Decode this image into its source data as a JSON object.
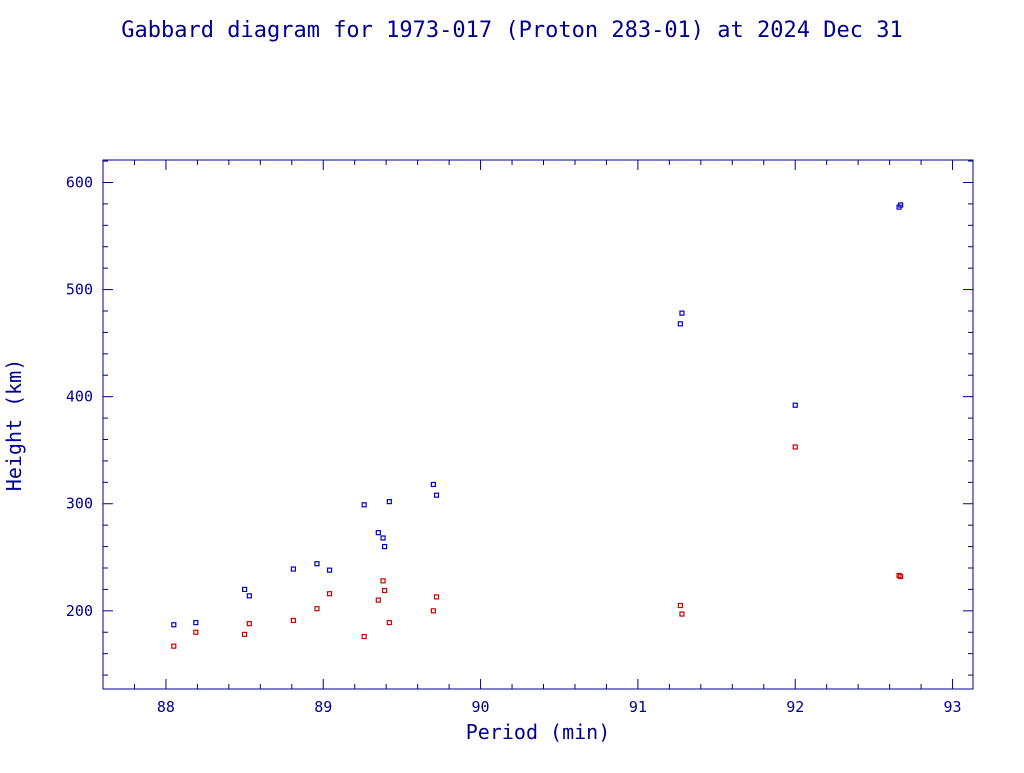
{
  "chart_data": {
    "type": "scatter",
    "title": "Gabbard diagram for 1973-017 (Proton 283-01) at 2024 Dec 31",
    "xlabel": "Period (min)",
    "ylabel": "Height (km)",
    "xlim": [
      87.6,
      93.13
    ],
    "ylim": [
      127,
      621
    ],
    "x_ticks": [
      "88",
      "89",
      "90",
      "91",
      "92",
      "93"
    ],
    "y_ticks": [
      "200",
      "300",
      "400",
      "500",
      "600"
    ],
    "colors": {
      "axis": "#00008b",
      "text": "#00008b",
      "apogee": "#0000cc",
      "perigee": "#cc0000"
    },
    "series": [
      {
        "role": "apogee",
        "color": "#0000cc",
        "points": [
          [
            88.05,
            187
          ],
          [
            88.19,
            189
          ],
          [
            88.5,
            220
          ],
          [
            88.53,
            214
          ],
          [
            88.81,
            239
          ],
          [
            88.96,
            244
          ],
          [
            89.04,
            238
          ],
          [
            89.26,
            299
          ],
          [
            89.35,
            273
          ],
          [
            89.38,
            268
          ],
          [
            89.39,
            260
          ],
          [
            89.42,
            302
          ],
          [
            89.7,
            318
          ],
          [
            89.72,
            308
          ],
          [
            91.27,
            468
          ],
          [
            91.28,
            478
          ],
          [
            92.0,
            392
          ],
          [
            92.66,
            577
          ],
          [
            92.67,
            579
          ]
        ]
      },
      {
        "role": "perigee",
        "color": "#cc0000",
        "points": [
          [
            88.05,
            167
          ],
          [
            88.19,
            180
          ],
          [
            88.5,
            178
          ],
          [
            88.53,
            188
          ],
          [
            88.81,
            191
          ],
          [
            88.96,
            202
          ],
          [
            89.04,
            216
          ],
          [
            89.26,
            176
          ],
          [
            89.35,
            210
          ],
          [
            89.38,
            228
          ],
          [
            89.39,
            219
          ],
          [
            89.42,
            189
          ],
          [
            89.7,
            200
          ],
          [
            89.72,
            213
          ],
          [
            91.27,
            205
          ],
          [
            91.28,
            197
          ],
          [
            92.0,
            353
          ],
          [
            92.66,
            233
          ],
          [
            92.67,
            232
          ]
        ]
      }
    ]
  }
}
